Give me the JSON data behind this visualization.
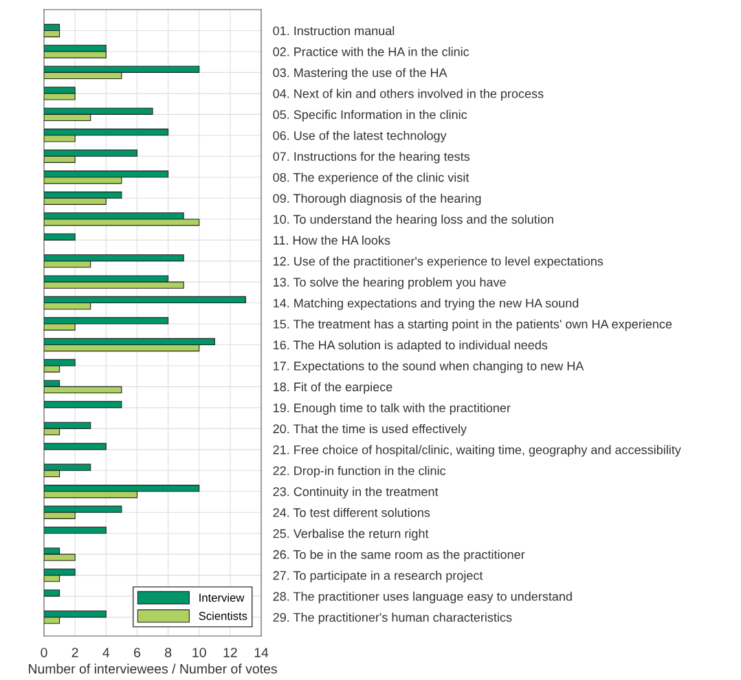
{
  "chart_data": {
    "type": "bar",
    "orientation": "horizontal",
    "xlabel": "Number of interviewees / Number of votes",
    "categories": [
      "01. Instruction manual",
      "02. Practice with the HA in the clinic",
      "03. Mastering the use of the HA",
      "04. Next of kin and others involved in the process",
      "05. Specific Information in the clinic",
      "06. Use of the latest technology",
      "07. Instructions for the hearing tests",
      "08. The experience of the clinic visit",
      "09. Thorough diagnosis of the hearing",
      "10. To understand the hearing loss and the solution",
      "11. How the HA looks",
      "12. Use of the practitioner's experience to level expectations",
      "13. To solve the hearing problem you have",
      "14. Matching expectations and trying the new HA sound",
      "15. The treatment has a starting point in the patients' own HA experience",
      "16. The HA solution is adapted to individual needs",
      "17. Expectations to the sound when changing to new HA",
      "18. Fit of the earpiece",
      "19. Enough time to talk with the practitioner",
      "20. That the time is used effectively",
      "21. Free choice of hospital/clinic, waiting time, geography and accessibility",
      "22. Drop-in function in the clinic",
      "23. Continuity in the treatment",
      "24. To test different solutions",
      "25. Verbalise the return right",
      "26. To be in the same room as the practitioner",
      "27. To participate in a research project",
      "28. The practitioner uses language easy to understand",
      "29. The practitioner's human characteristics"
    ],
    "series": [
      {
        "name": "Interview",
        "color": "#00966a",
        "values": [
          1,
          4,
          10,
          2,
          7,
          8,
          6,
          8,
          5,
          9,
          2,
          9,
          8,
          13,
          8,
          11,
          2,
          1,
          5,
          3,
          4,
          3,
          10,
          5,
          4,
          1,
          2,
          1,
          4
        ]
      },
      {
        "name": "Scientists",
        "color": "#aed161",
        "values": [
          1,
          4,
          5,
          2,
          3,
          2,
          2,
          5,
          4,
          10,
          null,
          3,
          9,
          3,
          2,
          10,
          1,
          5,
          null,
          1,
          null,
          1,
          6,
          2,
          null,
          2,
          1,
          null,
          1
        ]
      }
    ],
    "xlim": [
      0,
      14
    ],
    "xticks": [
      0,
      2,
      4,
      6,
      8,
      10,
      12,
      14
    ],
    "grid": true,
    "legend": "bottom right"
  }
}
